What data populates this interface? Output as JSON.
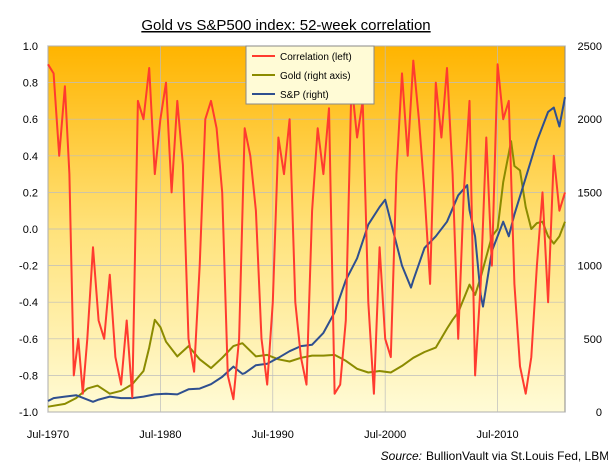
{
  "chart_data": {
    "type": "line",
    "title": "Gold vs S&P500 index: 52-week correlation",
    "source_label": "Source:",
    "source_text": "BullionVault via St.Louis Fed, LBMA",
    "x_axis": {
      "range": [
        1970.5,
        2016.5
      ],
      "ticks": [
        1970.5,
        1980.5,
        1990.5,
        2000.5,
        2010.5
      ],
      "tick_labels": [
        "Jul-1970",
        "Jul-1980",
        "Jul-1990",
        "Jul-2000",
        "Jul-2010"
      ]
    },
    "y_left": {
      "range": [
        -1.0,
        1.0
      ],
      "tick_values": [
        1.0,
        0.8,
        0.6,
        0.4,
        0.2,
        0.0,
        -0.2,
        -0.4,
        -0.6,
        -0.8,
        -1.0
      ],
      "tick_labels": [
        "1.0",
        "0.8",
        "0.6",
        "0.4",
        "0.2",
        "0.0",
        "-0.2",
        "-0.4",
        "-0.6",
        "-0.8",
        "-1.0"
      ]
    },
    "y_right": {
      "range": [
        0,
        2500
      ],
      "tick_values": [
        2500,
        2000,
        1500,
        1000,
        500,
        0
      ],
      "tick_labels": [
        "2500",
        "2000",
        "1500",
        "1000",
        "500",
        "0"
      ]
    },
    "legend": {
      "position": "top-center"
    },
    "series": [
      {
        "name": "Correlation (left)",
        "axis": "left",
        "color": "#ff3b2f",
        "x": [
          1970.5,
          1971.0,
          1971.5,
          1972.0,
          1972.4,
          1972.8,
          1973.2,
          1973.6,
          1974.0,
          1974.5,
          1975.0,
          1975.5,
          1976.0,
          1976.5,
          1977.0,
          1977.5,
          1978.0,
          1978.5,
          1979.0,
          1979.5,
          1980.0,
          1980.5,
          1981.0,
          1981.5,
          1982.0,
          1982.5,
          1983.0,
          1983.5,
          1984.0,
          1984.5,
          1985.0,
          1985.5,
          1986.0,
          1986.5,
          1987.0,
          1987.5,
          1988.0,
          1988.5,
          1989.0,
          1989.5,
          1990.0,
          1990.5,
          1991.0,
          1991.5,
          1992.0,
          1992.5,
          1993.0,
          1993.5,
          1994.0,
          1994.5,
          1995.0,
          1995.5,
          1996.0,
          1996.5,
          1997.0,
          1997.5,
          1998.0,
          1998.5,
          1999.0,
          1999.5,
          2000.0,
          2000.5,
          2001.0,
          2001.5,
          2002.0,
          2002.5,
          2003.0,
          2003.5,
          2004.0,
          2004.5,
          2005.0,
          2005.5,
          2006.0,
          2006.5,
          2007.0,
          2007.5,
          2008.0,
          2008.5,
          2009.0,
          2009.5,
          2010.0,
          2010.5,
          2011.0,
          2011.5,
          2012.0,
          2012.5,
          2013.0,
          2013.5,
          2014.0,
          2014.5,
          2015.0,
          2015.5,
          2016.0,
          2016.5
        ],
        "y": [
          0.9,
          0.85,
          0.4,
          0.78,
          0.3,
          -0.8,
          -0.6,
          -0.9,
          -0.6,
          -0.1,
          -0.5,
          -0.6,
          -0.25,
          -0.7,
          -0.85,
          -0.5,
          -0.92,
          0.7,
          0.6,
          0.88,
          0.3,
          0.6,
          0.8,
          0.2,
          0.7,
          0.35,
          -0.6,
          -0.78,
          -0.2,
          0.6,
          0.7,
          0.55,
          0.2,
          -0.8,
          -0.93,
          -0.6,
          0.55,
          0.4,
          0.1,
          -0.6,
          -0.85,
          -0.4,
          0.5,
          0.3,
          0.6,
          -0.4,
          -0.7,
          -0.85,
          0.1,
          0.55,
          0.3,
          0.66,
          -0.9,
          -0.85,
          -0.5,
          0.8,
          0.5,
          0.7,
          -0.4,
          -0.9,
          -0.1,
          -0.6,
          -0.7,
          0.3,
          0.85,
          0.4,
          0.92,
          0.6,
          0.2,
          -0.3,
          0.8,
          0.5,
          0.88,
          0.3,
          -0.6,
          0.2,
          0.7,
          -0.8,
          -0.3,
          0.5,
          -0.2,
          0.9,
          0.6,
          0.7,
          -0.3,
          -0.75,
          -0.9,
          -0.7,
          -0.2,
          0.2,
          -0.4,
          0.4,
          0.1,
          0.2
        ]
      },
      {
        "name": "Gold (right axis)",
        "axis": "right",
        "color": "#8b8b00",
        "x": [
          1970.5,
          1972.0,
          1973.0,
          1974.0,
          1974.9,
          1976.0,
          1977.0,
          1978.0,
          1979.0,
          1979.5,
          1980.0,
          1980.5,
          1981.0,
          1982.0,
          1983.0,
          1984.0,
          1985.0,
          1986.0,
          1987.0,
          1987.8,
          1989.0,
          1990.0,
          1991.0,
          1992.0,
          1993.0,
          1994.0,
          1995.0,
          1996.0,
          1997.0,
          1998.0,
          1999.0,
          2000.0,
          2001.0,
          2002.0,
          2003.0,
          2004.0,
          2005.0,
          2006.0,
          2006.5,
          2007.0,
          2008.0,
          2008.5,
          2009.0,
          2010.0,
          2010.5,
          2011.0,
          2011.7,
          2012.0,
          2012.5,
          2013.0,
          2013.5,
          2014.0,
          2014.5,
          2015.0,
          2015.5,
          2016.0,
          2016.5
        ],
        "y": [
          36,
          55,
          95,
          160,
          180,
          125,
          145,
          190,
          280,
          440,
          630,
          580,
          480,
          380,
          450,
          360,
          300,
          370,
          450,
          470,
          380,
          390,
          360,
          345,
          370,
          385,
          385,
          390,
          350,
          295,
          270,
          280,
          270,
          315,
          370,
          410,
          440,
          570,
          630,
          680,
          870,
          800,
          920,
          1200,
          1250,
          1570,
          1850,
          1680,
          1650,
          1400,
          1250,
          1290,
          1300,
          1200,
          1150,
          1200,
          1300
        ]
      },
      {
        "name": "S&P (right)",
        "axis": "right",
        "color": "#2f4f8f",
        "x": [
          1970.5,
          1971.0,
          1972.0,
          1973.0,
          1974.5,
          1975.0,
          1976.0,
          1977.0,
          1978.0,
          1979.0,
          1980.0,
          1981.0,
          1982.0,
          1983.0,
          1984.0,
          1985.0,
          1986.0,
          1987.0,
          1987.8,
          1988.0,
          1989.0,
          1990.0,
          1991.0,
          1992.0,
          1993.0,
          1994.0,
          1995.0,
          1996.0,
          1997.0,
          1998.0,
          1999.0,
          2000.0,
          2000.5,
          2001.0,
          2001.5,
          2002.0,
          2002.8,
          2003.0,
          2004.0,
          2005.0,
          2006.0,
          2007.0,
          2007.8,
          2008.0,
          2008.5,
          2009.0,
          2009.2,
          2010.0,
          2011.0,
          2011.5,
          2012.0,
          2013.0,
          2014.0,
          2015.0,
          2015.5,
          2016.0,
          2016.5
        ],
        "y": [
          75,
          95,
          105,
          115,
          70,
          85,
          105,
          95,
          95,
          105,
          120,
          125,
          120,
          155,
          160,
          190,
          240,
          310,
          260,
          265,
          320,
          330,
          370,
          415,
          450,
          460,
          540,
          680,
          900,
          1050,
          1280,
          1400,
          1450,
          1300,
          1150,
          1000,
          850,
          900,
          1120,
          1200,
          1300,
          1480,
          1550,
          1380,
          1200,
          800,
          720,
          1100,
          1300,
          1200,
          1350,
          1600,
          1850,
          2050,
          2080,
          1950,
          2150
        ]
      }
    ]
  }
}
